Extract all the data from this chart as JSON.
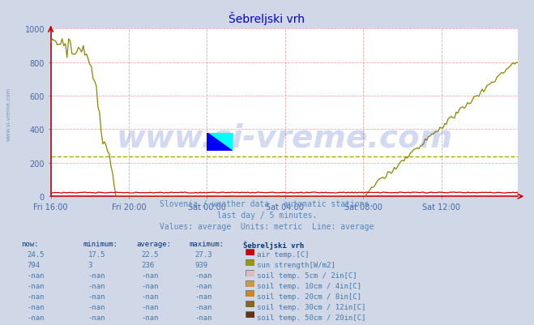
{
  "title": "Šebreljski vrh",
  "title_color": "#0000cc",
  "bg_color": "#d0d8e8",
  "plot_bg_color": "#ffffff",
  "grid_color_h": "#ffaaaa",
  "grid_color_v": "#ddaaaa",
  "watermark_text": "www.si-vreme.com",
  "watermark_color": "#3355bb",
  "watermark_alpha": 0.22,
  "watermark_fontsize": 28,
  "subtitle1": "Slovenia / weather data - automatic stations.",
  "subtitle2": "last day / 5 minutes.",
  "subtitle3": "Values: average  Units: metric  Line: average",
  "subtitle_color": "#5588bb",
  "tick_color": "#4466aa",
  "ymin": 0,
  "ymax": 1000,
  "ytick_step": 200,
  "num_points": 288,
  "xtick_labels": [
    "Fri 16:00",
    "Fri 20:00",
    "Sat 00:00",
    "Sat 04:00",
    "Sat 08:00",
    "Sat 12:00"
  ],
  "xtick_positions": [
    0,
    48,
    96,
    144,
    192,
    240
  ],
  "avg_line_value": 236,
  "avg_line_color": "#aaaa00",
  "air_temp_color": "#cc0000",
  "sun_color": "#888800",
  "axis_color": "#cc0000",
  "legend_items": [
    {
      "label": "air temp.[C]",
      "color": "#cc0000",
      "now": "24.5",
      "min": "17.5",
      "avg": "22.5",
      "max": "27.3"
    },
    {
      "label": "sun strength[W/m2]",
      "color": "#999900",
      "now": "794",
      "min": "3",
      "avg": "236",
      "max": "939"
    },
    {
      "label": "soil temp. 5cm / 2in[C]",
      "color": "#ddbbbb",
      "now": "-nan",
      "min": "-nan",
      "avg": "-nan",
      "max": "-nan"
    },
    {
      "label": "soil temp. 10cm / 4in[C]",
      "color": "#cc9944",
      "now": "-nan",
      "min": "-nan",
      "avg": "-nan",
      "max": "-nan"
    },
    {
      "label": "soil temp. 20cm / 8in[C]",
      "color": "#cc8822",
      "now": "-nan",
      "min": "-nan",
      "avg": "-nan",
      "max": "-nan"
    },
    {
      "label": "soil temp. 30cm / 12in[C]",
      "color": "#886622",
      "now": "-nan",
      "min": "-nan",
      "avg": "-nan",
      "max": "-nan"
    },
    {
      "label": "soil temp. 50cm / 20in[C]",
      "color": "#663311",
      "now": "-nan",
      "min": "-nan",
      "avg": "-nan",
      "max": "-nan"
    }
  ],
  "col_headers": [
    "now:",
    "minimum:",
    "average:",
    "maximum:",
    "Šebreljski vrh"
  ],
  "left_label": "www.si-vreme.com",
  "left_label_color": "#7799bb"
}
